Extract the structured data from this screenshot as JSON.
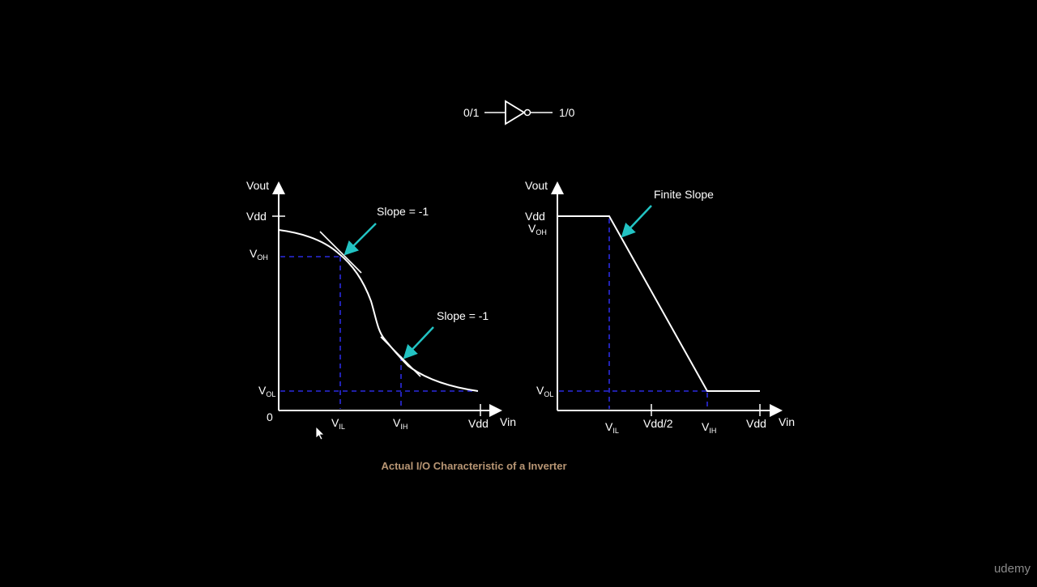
{
  "inverter": {
    "input_label": "0/1",
    "output_label": "1/0"
  },
  "left_graph": {
    "y_axis_label": "Vout",
    "x_axis_label": "Vin",
    "vdd_y_label": "Vdd",
    "voh_main": "V",
    "voh_sub": "OH",
    "vol_main": "V",
    "vol_sub": "OL",
    "origin_label": "0",
    "vil_main": "V",
    "vil_sub": "IL",
    "vih_main": "V",
    "vih_sub": "IH",
    "vdd_x_label": "Vdd",
    "slope_label_1": "Slope = -1",
    "slope_label_2": "Slope = -1"
  },
  "right_graph": {
    "y_axis_label": "Vout",
    "x_axis_label": "Vin",
    "vdd_y_label": "Vdd",
    "voh_main": "V",
    "voh_sub": "OH",
    "vol_main": "V",
    "vol_sub": "OL",
    "vil_main": "V",
    "vil_sub": "IL",
    "vdd_half_label": "Vdd/2",
    "vih_main": "V",
    "vih_sub": "IH",
    "vdd_x_label": "Vdd",
    "finite_slope_label": "Finite Slope"
  },
  "caption": "Actual I/O Characteristic of a Inverter",
  "watermark": "udemy",
  "colors": {
    "background": "#000000",
    "lines": "#ffffff",
    "dashed_guides": "#2a2ae0",
    "arrows": "#22c3c3",
    "caption": "#b89674",
    "watermark": "#8a8a8a"
  },
  "icons": {
    "gate": "not-gate-icon",
    "cursor": "mouse-pointer-icon"
  }
}
